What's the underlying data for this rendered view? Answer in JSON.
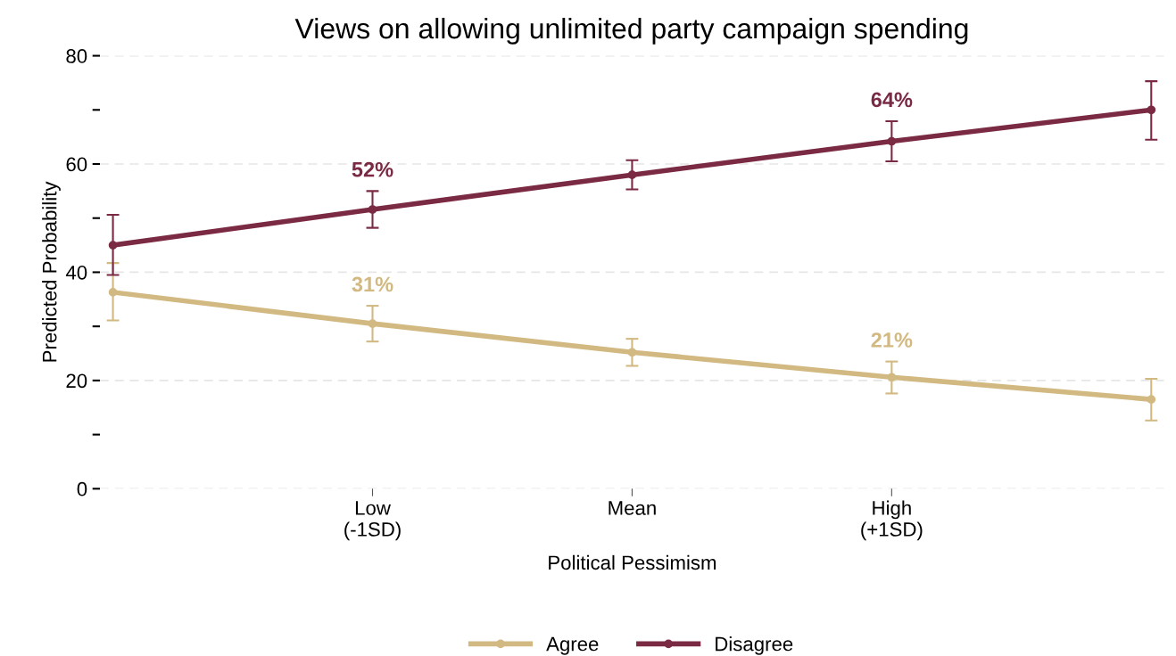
{
  "chart_data": {
    "type": "line",
    "title": "Views on allowing unlimited party campaign spending",
    "xlabel": "Political Pessimism",
    "ylabel": "Predicted Probability",
    "categories": [
      null,
      "Low\n(-1SD)",
      "Mean",
      "High\n(+1SD)",
      null
    ],
    "series": [
      {
        "name": "Agree",
        "color": "#d2b982",
        "values": [
          36.3,
          30.5,
          25.2,
          20.6,
          16.5
        ],
        "errors": [
          [
            31.1,
            41.7
          ],
          [
            27.2,
            33.8
          ],
          [
            22.7,
            27.7
          ],
          [
            17.6,
            23.5
          ],
          [
            12.6,
            20.3
          ]
        ],
        "value_labels": [
          null,
          "31%",
          null,
          "21%",
          null
        ]
      },
      {
        "name": "Disagree",
        "color": "#7b2a43",
        "values": [
          45.0,
          51.6,
          58.0,
          64.2,
          70.0
        ],
        "errors": [
          [
            39.5,
            50.6
          ],
          [
            48.2,
            55.0
          ],
          [
            55.3,
            60.7
          ],
          [
            60.5,
            67.9
          ],
          [
            64.5,
            75.3
          ]
        ],
        "value_labels": [
          null,
          "52%",
          null,
          "64%",
          null
        ]
      }
    ],
    "ylim": [
      0,
      80
    ],
    "yticks": [
      0,
      {
        "value": 10,
        "label": null
      },
      20,
      {
        "value": 30,
        "label": null
      },
      40,
      {
        "value": 50,
        "label": null
      },
      60,
      {
        "value": 70,
        "label": null
      },
      80
    ],
    "grid": "y",
    "legend": "bottom",
    "marker": "circle",
    "line_style": "solid"
  }
}
